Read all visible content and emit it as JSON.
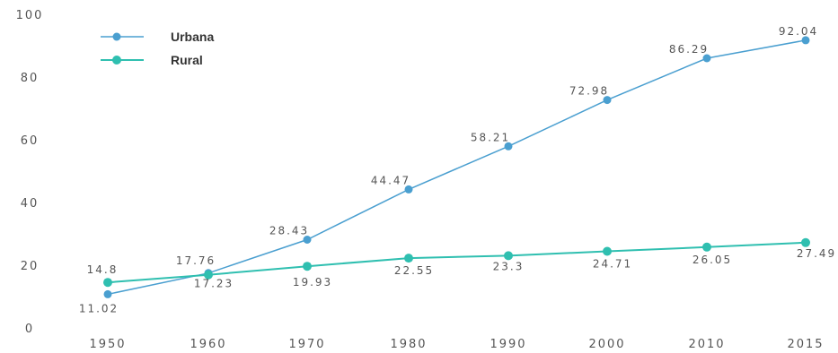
{
  "chart_data": {
    "type": "line",
    "categories": [
      "1950",
      "1960",
      "1970",
      "1980",
      "1990",
      "2000",
      "2010",
      "2015"
    ],
    "series": [
      {
        "name": "Urbana",
        "color": "#4a9fd0",
        "values": [
          11.02,
          17.76,
          28.43,
          44.47,
          58.21,
          72.98,
          86.29,
          92.04
        ],
        "labels": [
          "11.02",
          "17.76",
          "28.43",
          "44.47",
          "58.21",
          "72.98",
          "86.29",
          "92.04"
        ]
      },
      {
        "name": "Rural",
        "color": "#2fbfb0",
        "values": [
          14.8,
          17.23,
          19.93,
          22.55,
          23.3,
          24.71,
          26.05,
          27.49
        ],
        "labels": [
          "14.8",
          "17.23",
          "19.93",
          "22.55",
          "23.3",
          "24.71",
          "26.05",
          "27.49"
        ]
      }
    ],
    "yticks": [
      "0",
      "20",
      "40",
      "60",
      "80",
      "100"
    ],
    "ylim": [
      0,
      100
    ],
    "grid": false,
    "legend_position": "top-left"
  }
}
